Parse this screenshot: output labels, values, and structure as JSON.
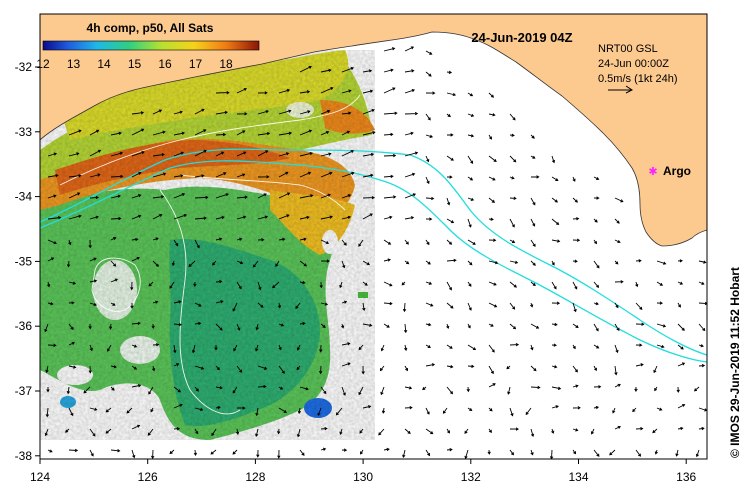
{
  "colorbar": {
    "title": "4h comp, p50, All Sats",
    "ticks": [
      "12",
      "13",
      "14",
      "15",
      "16",
      "17",
      "18"
    ]
  },
  "map": {
    "timestamp": "24-Jun-2019 04Z",
    "model": "NRT00 GSL",
    "model_time": "24-Jun 00:00Z",
    "scale": "0.5m/s (1kt 24h)",
    "argo_label": "Argo",
    "argo_color": "#ff22ff",
    "land_color": "#fcc98f",
    "current_color": "#22dddd",
    "credit": "© IMOS 29-Jun-2019 11:52 Hobart"
  },
  "axes": {
    "x_ticks": [
      "124",
      "126",
      "128",
      "130",
      "132",
      "134",
      "136"
    ],
    "y_ticks": [
      "-32",
      "-33",
      "-34",
      "-35",
      "-36",
      "-37",
      "-38"
    ]
  }
}
